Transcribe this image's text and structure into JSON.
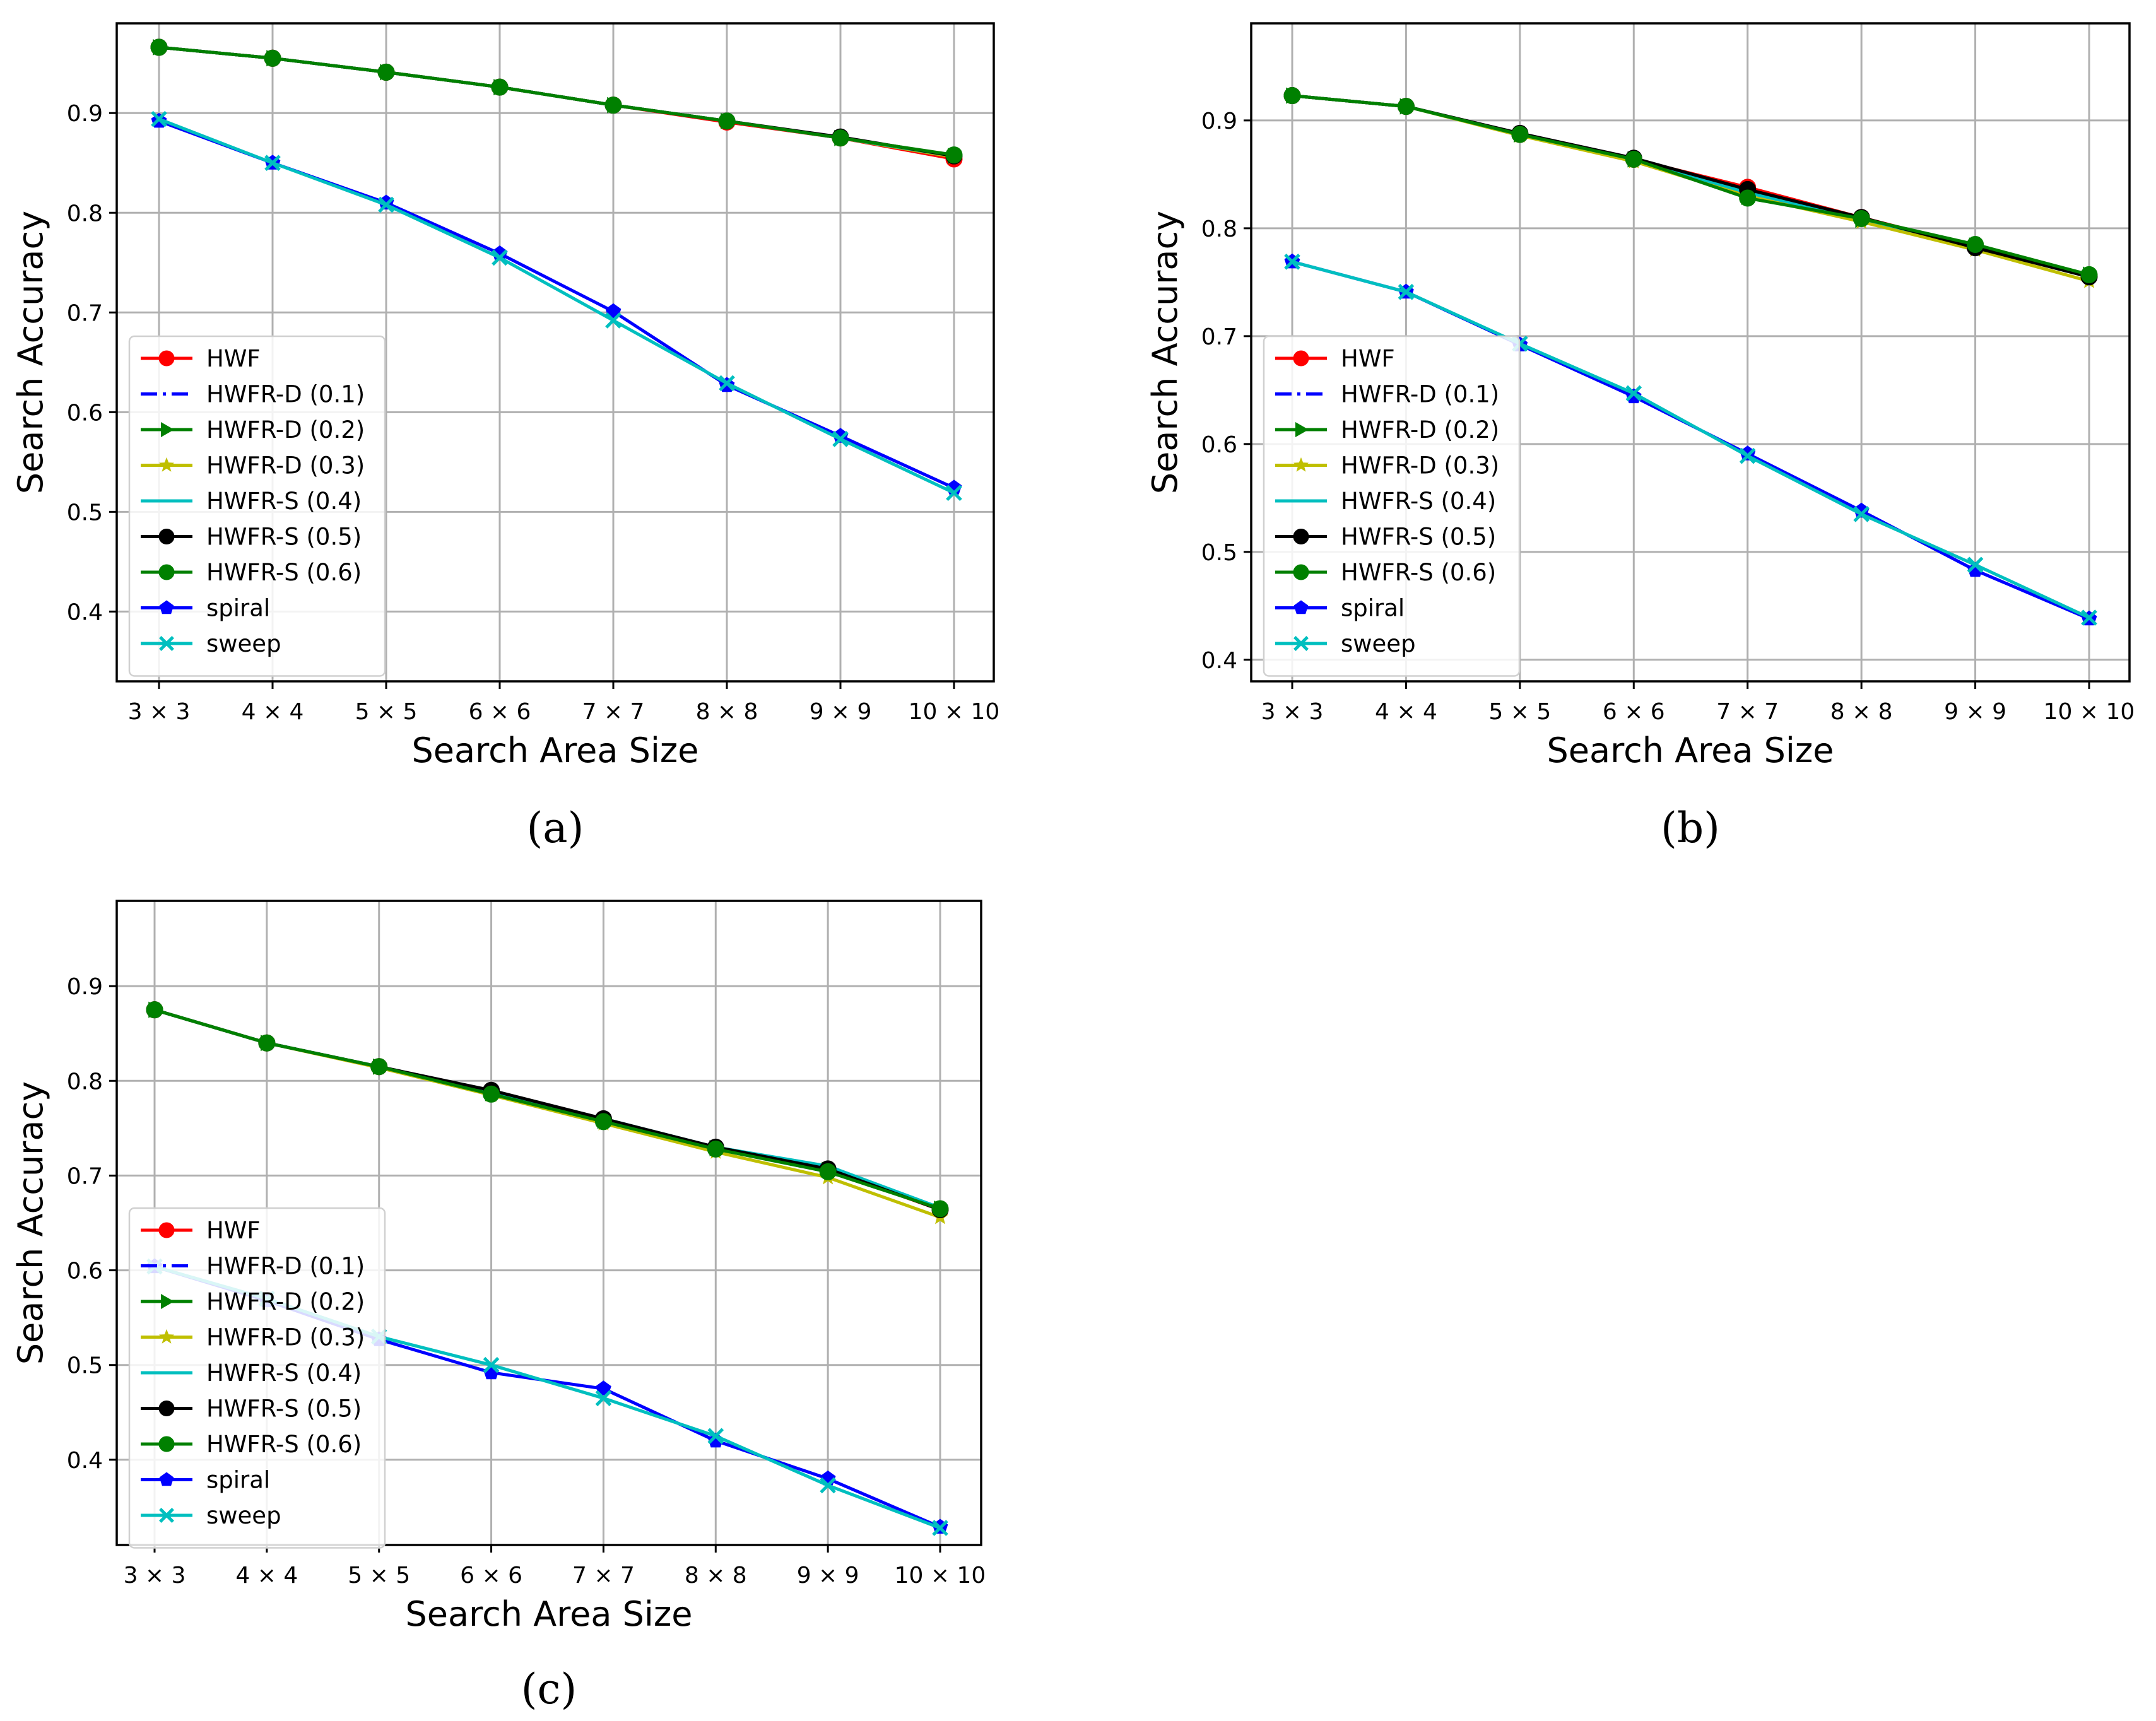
{
  "chart_data": [
    {
      "type": "line",
      "caption": "(a)",
      "xlabel": "Search Area Size",
      "ylabel": "Search Accuracy",
      "categories": [
        "3 × 3",
        "4 × 4",
        "5 × 5",
        "6 × 6",
        "7 × 7",
        "8 × 8",
        "9 × 9",
        "10 × 10"
      ],
      "ylim": [
        0.33,
        0.99
      ],
      "yticks": [
        "0.4",
        "0.5",
        "0.6",
        "0.7",
        "0.8",
        "0.9"
      ],
      "grid": true,
      "legend_position": "lower-left",
      "series": [
        {
          "name": "HWF",
          "color": "#ff0000",
          "marker": "circle",
          "dash": "solid",
          "values": [
            0.966,
            0.955,
            0.941,
            0.926,
            0.908,
            0.891,
            0.875,
            0.854
          ]
        },
        {
          "name": "HWFR-D (0.1)",
          "color": "#0000ff",
          "marker": "none",
          "dash": "dashdot",
          "values": [
            0.966,
            0.955,
            0.941,
            0.926,
            0.908,
            0.892,
            0.875,
            0.856
          ]
        },
        {
          "name": "HWFR-D (0.2)",
          "color": "#008000",
          "marker": "triangle-right",
          "dash": "solid",
          "values": [
            0.966,
            0.955,
            0.941,
            0.926,
            0.908,
            0.892,
            0.875,
            0.857
          ]
        },
        {
          "name": "HWFR-D (0.3)",
          "color": "#bfbf00",
          "marker": "star",
          "dash": "solid",
          "values": [
            0.966,
            0.955,
            0.941,
            0.926,
            0.908,
            0.892,
            0.875,
            0.856
          ]
        },
        {
          "name": "HWFR-S (0.4)",
          "color": "#00bfbf",
          "marker": "none",
          "dash": "solid",
          "values": [
            0.966,
            0.955,
            0.941,
            0.926,
            0.908,
            0.892,
            0.875,
            0.857
          ]
        },
        {
          "name": "HWFR-S (0.5)",
          "color": "#000000",
          "marker": "circle",
          "dash": "solid",
          "values": [
            0.966,
            0.955,
            0.941,
            0.926,
            0.908,
            0.892,
            0.876,
            0.857
          ]
        },
        {
          "name": "HWFR-S (0.6)",
          "color": "#008000",
          "marker": "circle",
          "dash": "solid",
          "values": [
            0.966,
            0.955,
            0.941,
            0.926,
            0.908,
            0.892,
            0.875,
            0.858
          ]
        },
        {
          "name": "spiral",
          "color": "#0000ff",
          "marker": "pentagon",
          "dash": "solid",
          "values": [
            0.892,
            0.85,
            0.81,
            0.759,
            0.701,
            0.627,
            0.576,
            0.524
          ]
        },
        {
          "name": "sweep",
          "color": "#00bfbf",
          "marker": "x",
          "dash": "solid",
          "values": [
            0.894,
            0.85,
            0.808,
            0.755,
            0.692,
            0.629,
            0.573,
            0.519
          ]
        }
      ]
    },
    {
      "type": "line",
      "caption": "(b)",
      "xlabel": "Search Area Size",
      "ylabel": "Search Accuracy",
      "categories": [
        "3 × 3",
        "4 × 4",
        "5 × 5",
        "6 × 6",
        "7 × 7",
        "8 × 8",
        "9 × 9",
        "10 × 10"
      ],
      "ylim": [
        0.38,
        0.99
      ],
      "yticks": [
        "0.4",
        "0.5",
        "0.6",
        "0.7",
        "0.8",
        "0.9"
      ],
      "grid": true,
      "legend_position": "lower-left",
      "series": [
        {
          "name": "HWF",
          "color": "#ff0000",
          "marker": "circle",
          "dash": "solid",
          "values": [
            0.923,
            0.913,
            0.887,
            0.864,
            0.838,
            0.81,
            0.783,
            0.756
          ]
        },
        {
          "name": "HWFR-D (0.1)",
          "color": "#0000ff",
          "marker": "none",
          "dash": "dashdot",
          "values": [
            0.923,
            0.913,
            0.887,
            0.864,
            0.833,
            0.809,
            0.783,
            0.756
          ]
        },
        {
          "name": "HWFR-D (0.2)",
          "color": "#008000",
          "marker": "triangle-right",
          "dash": "solid",
          "values": [
            0.923,
            0.913,
            0.887,
            0.864,
            0.829,
            0.808,
            0.784,
            0.757
          ]
        },
        {
          "name": "HWFR-D (0.3)",
          "color": "#bfbf00",
          "marker": "star",
          "dash": "solid",
          "values": [
            0.923,
            0.913,
            0.886,
            0.862,
            0.83,
            0.806,
            0.78,
            0.751
          ]
        },
        {
          "name": "HWFR-S (0.4)",
          "color": "#00bfbf",
          "marker": "none",
          "dash": "solid",
          "values": [
            0.923,
            0.913,
            0.887,
            0.864,
            0.833,
            0.809,
            0.783,
            0.755
          ]
        },
        {
          "name": "HWFR-S (0.5)",
          "color": "#000000",
          "marker": "circle",
          "dash": "solid",
          "values": [
            0.923,
            0.913,
            0.888,
            0.865,
            0.836,
            0.81,
            0.782,
            0.755
          ]
        },
        {
          "name": "HWFR-S (0.6)",
          "color": "#008000",
          "marker": "circle",
          "dash": "solid",
          "values": [
            0.923,
            0.913,
            0.887,
            0.864,
            0.828,
            0.809,
            0.785,
            0.757
          ]
        },
        {
          "name": "spiral",
          "color": "#0000ff",
          "marker": "pentagon",
          "dash": "solid",
          "values": [
            0.769,
            0.741,
            0.692,
            0.644,
            0.591,
            0.538,
            0.483,
            0.438
          ]
        },
        {
          "name": "sweep",
          "color": "#00bfbf",
          "marker": "x",
          "dash": "solid",
          "values": [
            0.769,
            0.741,
            0.693,
            0.647,
            0.589,
            0.535,
            0.488,
            0.439
          ]
        }
      ]
    },
    {
      "type": "line",
      "caption": "(c)",
      "xlabel": "Search Area Size",
      "ylabel": "Search Accuracy",
      "categories": [
        "3 × 3",
        "4 × 4",
        "5 × 5",
        "6 × 6",
        "7 × 7",
        "8 × 8",
        "9 × 9",
        "10 × 10"
      ],
      "ylim": [
        0.31,
        0.99
      ],
      "yticks": [
        "0.4",
        "0.5",
        "0.6",
        "0.7",
        "0.8",
        "0.9"
      ],
      "grid": true,
      "legend_position": "lower-left",
      "series": [
        {
          "name": "HWF",
          "color": "#ff0000",
          "marker": "circle",
          "dash": "solid",
          "values": [
            0.875,
            0.84,
            0.815,
            0.788,
            0.759,
            0.729,
            0.706,
            0.664
          ]
        },
        {
          "name": "HWFR-D (0.1)",
          "color": "#0000ff",
          "marker": "none",
          "dash": "dashdot",
          "values": [
            0.875,
            0.84,
            0.815,
            0.789,
            0.759,
            0.73,
            0.707,
            0.665
          ]
        },
        {
          "name": "HWFR-D (0.2)",
          "color": "#008000",
          "marker": "triangle-right",
          "dash": "solid",
          "values": [
            0.875,
            0.84,
            0.815,
            0.787,
            0.758,
            0.729,
            0.706,
            0.665
          ]
        },
        {
          "name": "HWFR-D (0.3)",
          "color": "#bfbf00",
          "marker": "star",
          "dash": "solid",
          "values": [
            0.875,
            0.84,
            0.814,
            0.785,
            0.755,
            0.725,
            0.698,
            0.656
          ]
        },
        {
          "name": "HWFR-S (0.4)",
          "color": "#00bfbf",
          "marker": "none",
          "dash": "solid",
          "values": [
            0.875,
            0.84,
            0.815,
            0.789,
            0.76,
            0.73,
            0.71,
            0.666
          ]
        },
        {
          "name": "HWFR-S (0.5)",
          "color": "#000000",
          "marker": "circle",
          "dash": "solid",
          "values": [
            0.875,
            0.84,
            0.815,
            0.79,
            0.76,
            0.73,
            0.707,
            0.664
          ]
        },
        {
          "name": "HWFR-S (0.6)",
          "color": "#008000",
          "marker": "circle",
          "dash": "solid",
          "values": [
            0.875,
            0.84,
            0.815,
            0.786,
            0.757,
            0.728,
            0.704,
            0.665
          ]
        },
        {
          "name": "spiral",
          "color": "#0000ff",
          "marker": "pentagon",
          "dash": "solid",
          "values": [
            0.604,
            0.568,
            0.527,
            0.492,
            0.475,
            0.42,
            0.38,
            0.329
          ]
        },
        {
          "name": "sweep",
          "color": "#00bfbf",
          "marker": "x",
          "dash": "solid",
          "values": [
            0.604,
            0.57,
            0.53,
            0.5,
            0.465,
            0.425,
            0.373,
            0.328
          ]
        }
      ]
    }
  ]
}
